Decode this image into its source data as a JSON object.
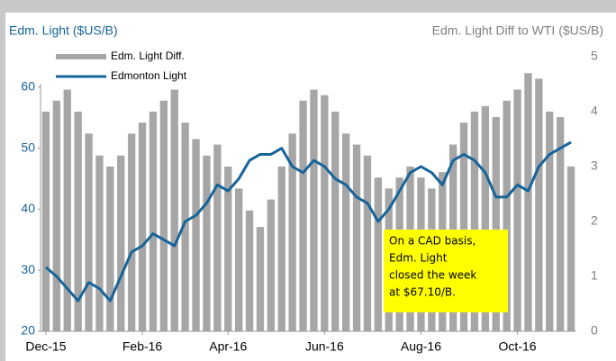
{
  "chart_data": {
    "type": "bar",
    "y_label": "Edm. Light ($US/B)",
    "y2_label": "Edm. Light Diff to WTI ($US/B)",
    "categories": [
      "Dec-15",
      null,
      null,
      null,
      null,
      null,
      null,
      null,
      null,
      "Feb-16",
      null,
      null,
      null,
      null,
      null,
      null,
      null,
      "Apr-16",
      null,
      null,
      null,
      null,
      null,
      null,
      null,
      null,
      "Jun-16",
      null,
      null,
      null,
      null,
      null,
      null,
      null,
      null,
      "Aug-16",
      null,
      null,
      null,
      null,
      null,
      null,
      null,
      null,
      "Oct-16",
      null,
      null,
      null,
      null,
      null
    ],
    "series": [
      {
        "name": "Edm. Light Diff.",
        "type": "bar",
        "axis": "y2",
        "color": "#a6a6a6",
        "values": [
          4.0,
          4.2,
          4.4,
          4.0,
          3.6,
          3.2,
          3.0,
          3.2,
          3.6,
          3.8,
          4.0,
          4.2,
          4.4,
          3.8,
          3.5,
          3.2,
          3.4,
          3.0,
          2.6,
          2.2,
          1.9,
          2.4,
          3.0,
          3.6,
          4.2,
          4.4,
          4.3,
          4.0,
          3.6,
          3.4,
          3.2,
          2.8,
          2.6,
          2.8,
          3.0,
          2.8,
          2.6,
          2.9,
          3.4,
          3.8,
          4.0,
          4.1,
          3.9,
          4.2,
          4.4,
          4.7,
          4.6,
          4.0,
          3.9,
          3.0
        ]
      },
      {
        "name": "Edmonton Light",
        "type": "line",
        "color": "#17649a",
        "values": [
          30.5,
          29,
          27,
          25,
          28,
          27,
          25,
          29,
          33,
          34,
          36,
          35,
          34,
          38,
          39,
          41,
          44,
          43,
          45,
          48,
          49,
          49,
          50,
          47,
          46,
          48,
          47,
          45,
          44,
          42,
          41,
          38,
          40,
          43,
          46,
          47,
          46,
          44,
          48,
          49,
          48,
          46,
          42,
          42,
          44,
          43,
          47,
          49,
          50,
          51
        ]
      }
    ],
    "ylim": [
      20,
      65
    ],
    "yticks": [
      20,
      30,
      40,
      50,
      60
    ],
    "y2lim": [
      0,
      5
    ],
    "y2ticks": [
      0,
      1,
      2,
      3,
      4,
      5
    ],
    "annotation": {
      "lines": [
        "On a CAD basis,",
        "Edm. Light",
        "closed the week",
        "at $67.10/B."
      ],
      "color": "#ffff00"
    }
  }
}
